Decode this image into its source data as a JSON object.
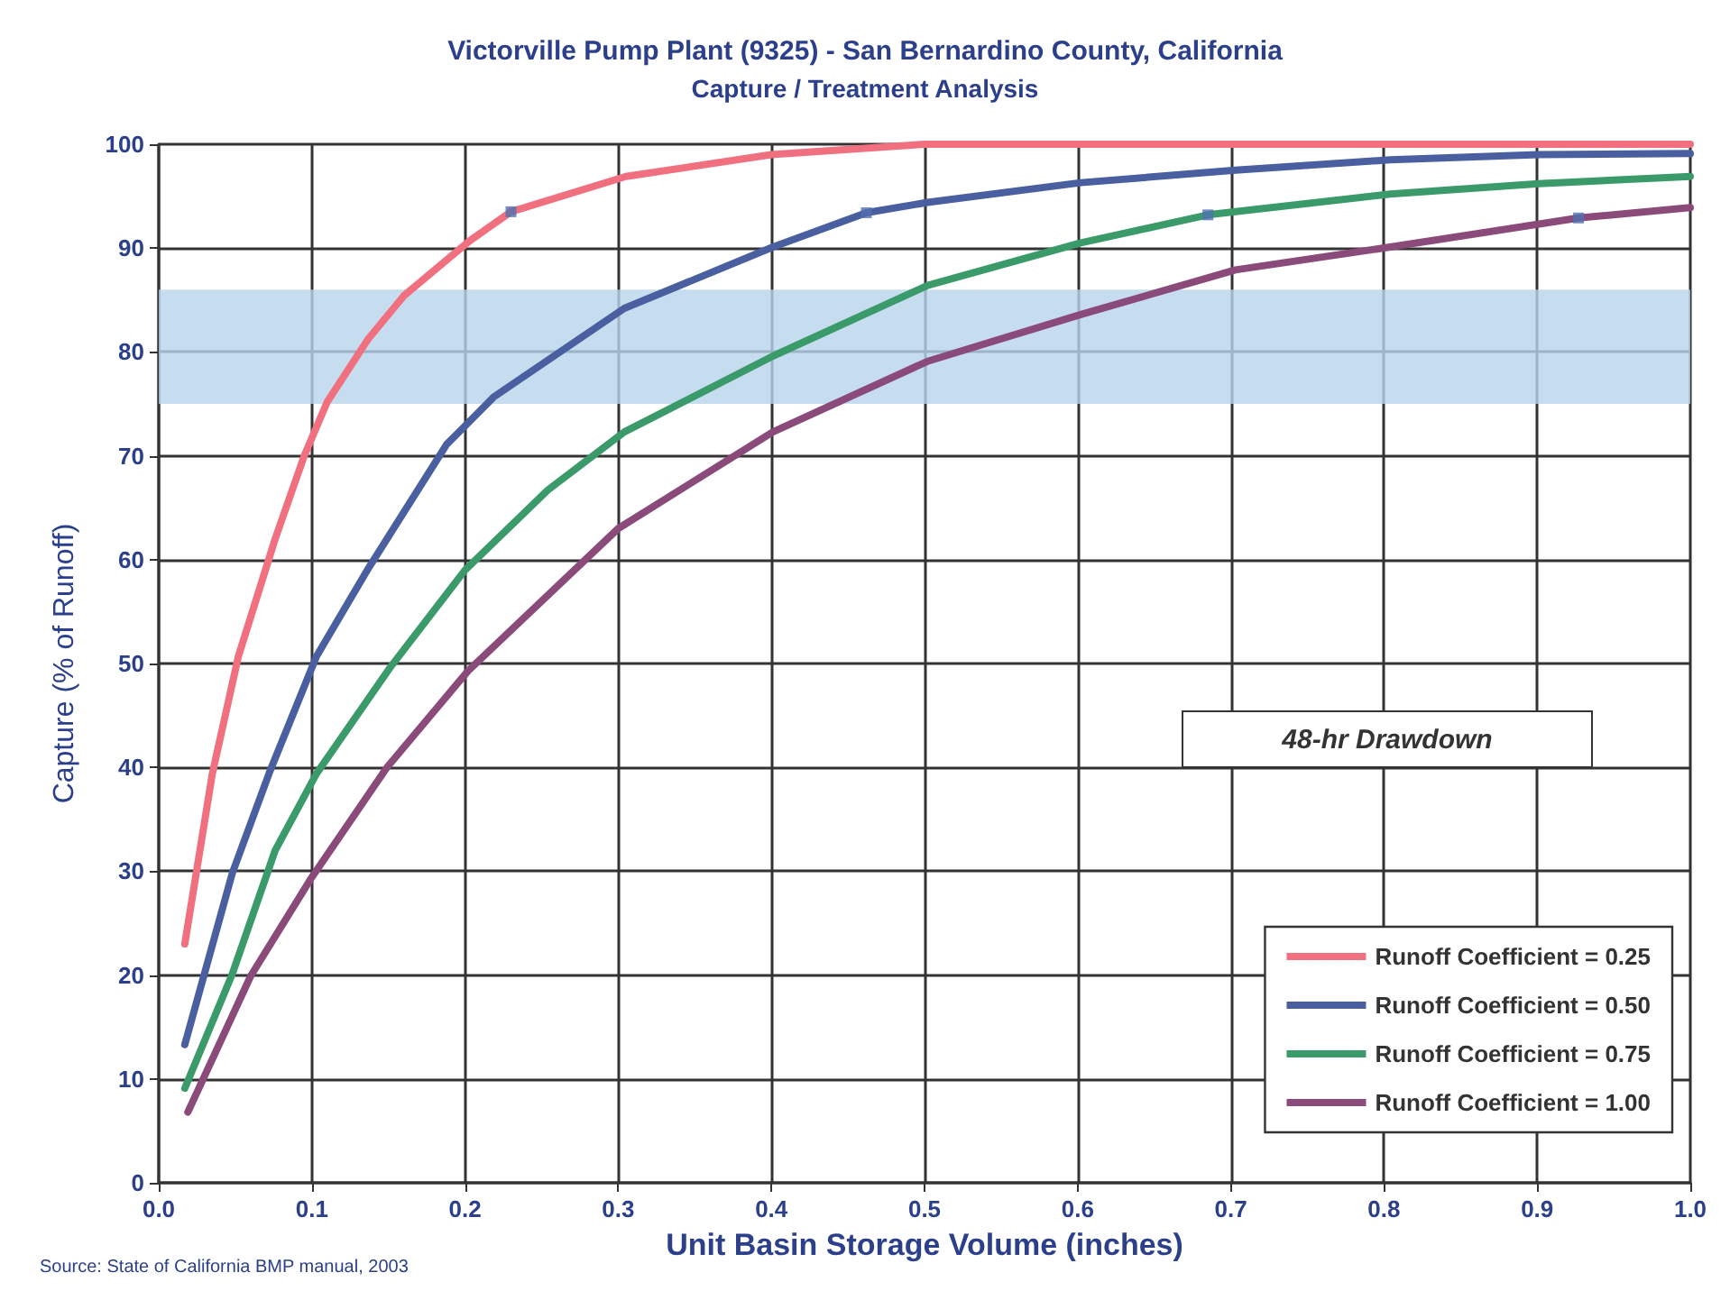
{
  "chart_data": {
    "type": "line",
    "title": "Victorville Pump Plant (9325) - San Bernardino County, California",
    "subtitle": "Capture / Treatment Analysis",
    "xlabel": "Unit Basin Storage Volume (inches)",
    "ylabel": "Capture (% of Runoff)",
    "xlim": [
      0,
      1
    ],
    "xticks": [
      {
        "value": 0,
        "label": "0.0"
      },
      0.1,
      0.2,
      0.3,
      0.4,
      0.5,
      0.6,
      0.7,
      0.8,
      0.9,
      {
        "value": 1,
        "label": "1.0"
      }
    ],
    "ylim": [
      0,
      100
    ],
    "yticks": [
      0,
      10,
      20,
      30,
      40,
      50,
      60,
      70,
      80,
      90,
      100
    ],
    "grid": true,
    "legend": "bottom right",
    "marker": "none",
    "line_style": "solid",
    "bands": [
      {
        "axis": "y",
        "from": 75,
        "to": 86,
        "color": "#b8d4ec"
      }
    ],
    "annotations": [
      "48-hr Drawdown",
      "Source: State of California BMP manual, 2003"
    ],
    "series": [
      {
        "name": "Runoff Coefficient = 0.25",
        "color": "#f07080",
        "x": [
          0.017,
          0.035,
          0.052,
          0.076,
          0.095,
          0.11,
          0.137,
          0.16,
          0.203,
          0.23,
          0.305,
          0.4,
          0.5,
          0.6,
          0.8,
          1.0
        ],
        "values": [
          23,
          39.4,
          50.7,
          62,
          70,
          75.2,
          81.3,
          85.4,
          90.7,
          93.5,
          96.9,
          99,
          100,
          100,
          100,
          100
        ]
      },
      {
        "name": "Runoff Coefficient = 0.50",
        "color": "#4a5fa0",
        "x": [
          0.017,
          0.048,
          0.072,
          0.103,
          0.137,
          0.188,
          0.219,
          0.258,
          0.304,
          0.401,
          0.462,
          0.502,
          0.602,
          0.703,
          0.804,
          0.901,
          1.0
        ],
        "values": [
          13.3,
          29.8,
          39.4,
          50.7,
          59.2,
          71.1,
          75.7,
          79.6,
          84.2,
          90.1,
          93.4,
          94.4,
          96.3,
          97.5,
          98.5,
          99,
          99.1
        ]
      },
      {
        "name": "Runoff Coefficient = 0.75",
        "color": "#3a9a6a",
        "x": [
          0.017,
          0.048,
          0.076,
          0.103,
          0.151,
          0.2,
          0.254,
          0.304,
          0.401,
          0.502,
          0.602,
          0.685,
          0.804,
          0.901,
          1.0
        ],
        "values": [
          9.1,
          20.1,
          32,
          39.4,
          49.6,
          59,
          66.7,
          72.3,
          79.6,
          86.4,
          90.5,
          93.2,
          95.2,
          96.2,
          96.9
        ]
      },
      {
        "name": "Runoff Coefficient = 1.00",
        "color": "#8a4a7a",
        "x": [
          0.019,
          0.06,
          0.099,
          0.149,
          0.202,
          0.3,
          0.401,
          0.502,
          0.602,
          0.703,
          0.804,
          0.927,
          1.0
        ],
        "values": [
          6.8,
          19.9,
          29.2,
          40,
          49.3,
          63,
          72.3,
          79.1,
          83.6,
          87.9,
          90.1,
          92.9,
          93.9
        ]
      },
      {
        "type": "scatter",
        "marker": "square",
        "color": "#5070b0",
        "x": [
          0.23,
          0.462,
          0.685,
          0.927
        ],
        "values": [
          93.5,
          93.4,
          93.2,
          92.9
        ]
      }
    ]
  }
}
